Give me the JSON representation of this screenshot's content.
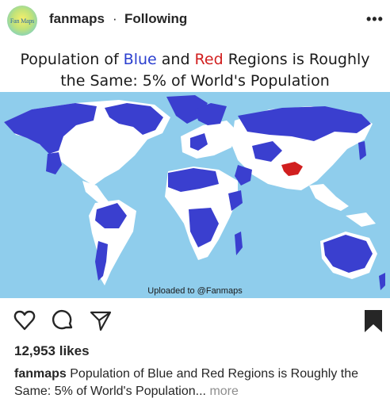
{
  "post": {
    "author": {
      "avatar_text": "Fan Maps",
      "username": "fanmaps",
      "follow_status": "Following"
    },
    "image": {
      "title_parts": [
        "Population of ",
        "Blue",
        " and ",
        "Red",
        " Regions is Roughly",
        "the Same: 5% of World's Population"
      ],
      "credit": "Uploaded to @Fanmaps",
      "colors": {
        "ocean": "#8fcdec",
        "land": "#ffffff",
        "blue_region": "#3a3fcf",
        "red_region": "#d11f1f"
      }
    },
    "actions": {
      "icons": [
        "heart-icon",
        "comment-icon",
        "share-icon",
        "bookmark-icon"
      ]
    },
    "likes": "12,953 likes",
    "caption": {
      "username": "fanmaps",
      "text": " Population of Blue and Red Regions is Roughly the Same: 5% of World's Population...",
      "more": "more"
    }
  }
}
